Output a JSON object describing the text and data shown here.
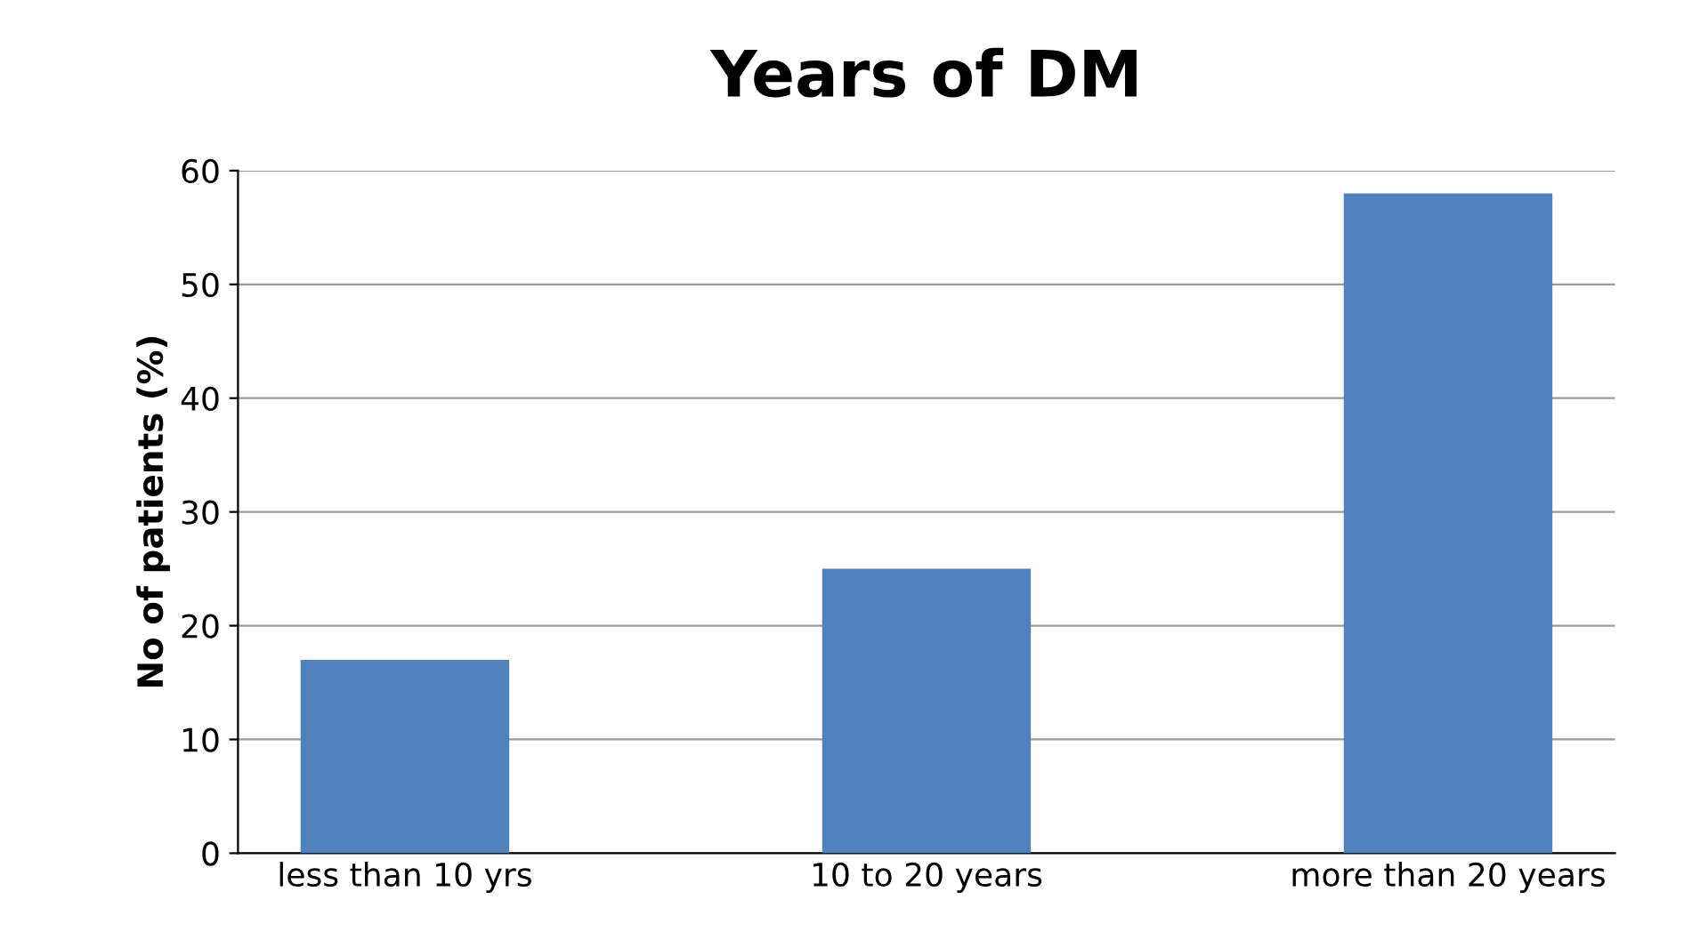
{
  "chart_data": {
    "type": "bar",
    "title": "Years of DM",
    "ylabel": "No of patients (%)",
    "categories": [
      "less than 10 yrs",
      "10 to 20 years",
      "more than 20 years"
    ],
    "values": [
      17,
      25,
      58
    ],
    "color": "#4f81bd",
    "ylim": [
      0,
      60
    ],
    "yticks": [
      0,
      10,
      20,
      30,
      40,
      50,
      60
    ],
    "grid": "y",
    "legend": false
  }
}
